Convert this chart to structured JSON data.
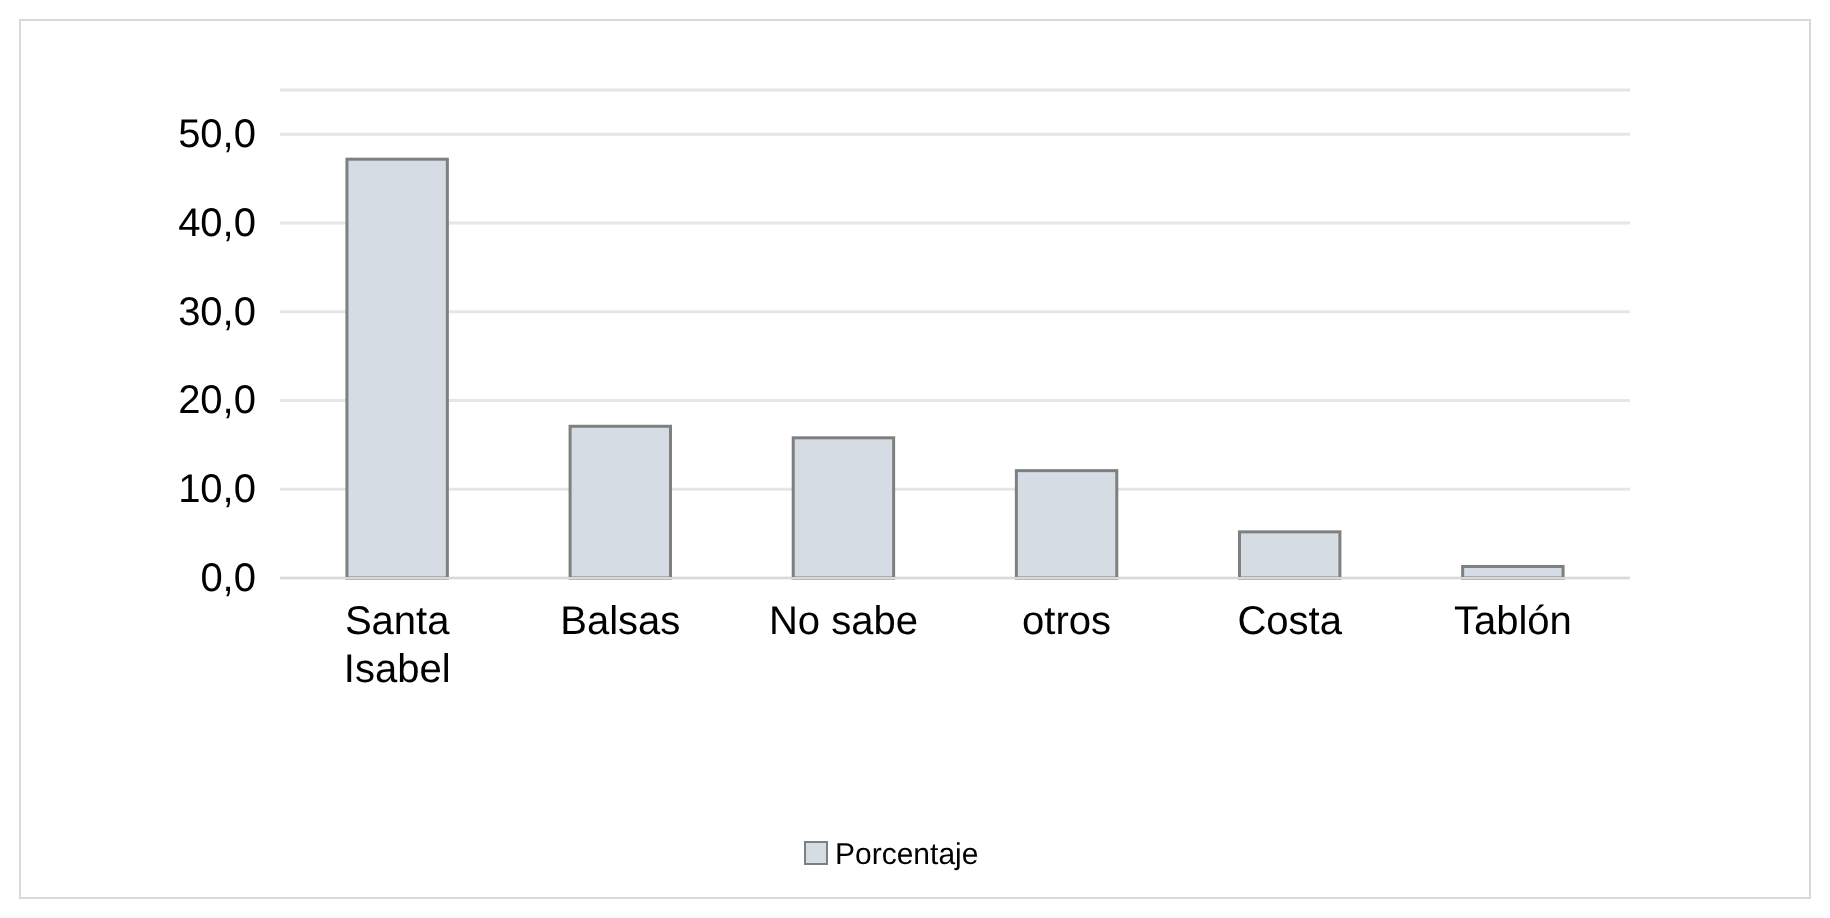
{
  "chart_data": {
    "type": "bar",
    "categories": [
      "Santa Isabel",
      "Balsas",
      "No sabe",
      "otros",
      "Costa",
      "Tablón"
    ],
    "series": [
      {
        "name": "Porcentaje",
        "color": "#d6dce4",
        "values": [
          47.2,
          17.1,
          15.8,
          12.1,
          5.2,
          1.3
        ]
      }
    ],
    "ylim": [
      0,
      55
    ],
    "yticks": [
      {
        "value": 0,
        "label": "0,0"
      },
      {
        "value": 10,
        "label": "10,0"
      },
      {
        "value": 20,
        "label": "20,0"
      },
      {
        "value": 30,
        "label": "30,0"
      },
      {
        "value": 40,
        "label": "40,0"
      },
      {
        "value": 50,
        "label": "50,0"
      }
    ],
    "grid": "y",
    "legend": "bottom"
  }
}
